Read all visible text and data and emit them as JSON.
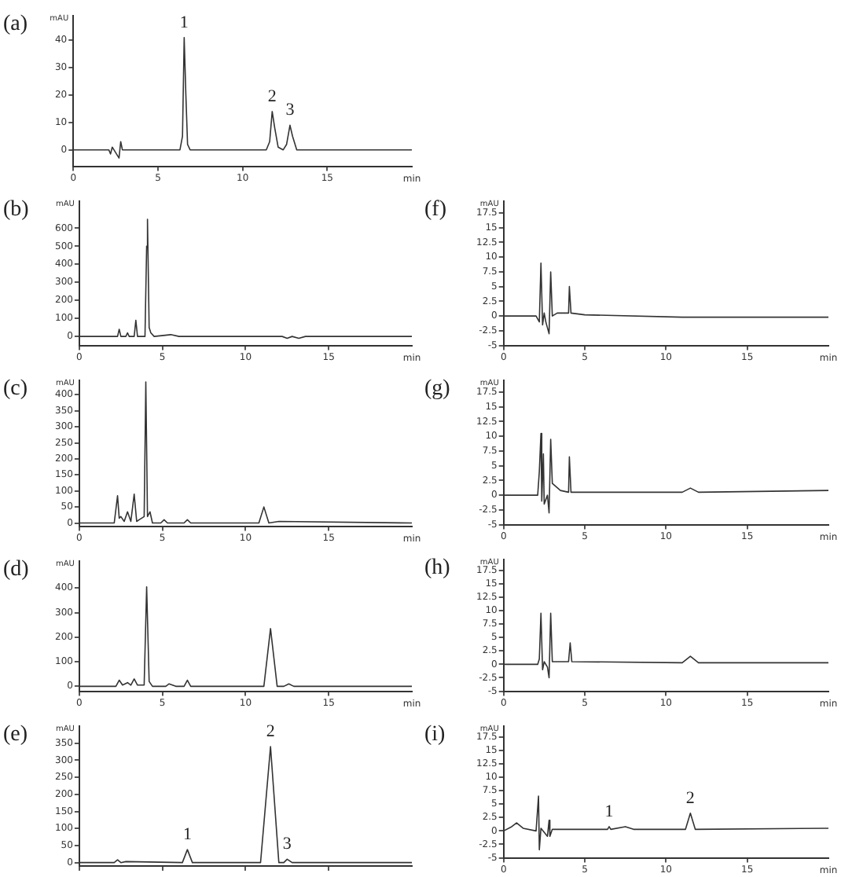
{
  "chart_data": [
    {
      "type": "line",
      "title": "(a)",
      "ylabel": "mAU",
      "xlabel": "min",
      "color": "#333333",
      "xlim": [
        0,
        20
      ],
      "ylim": [
        -6,
        49
      ],
      "xticks": [
        0,
        5,
        10,
        15
      ],
      "yticks": [
        0,
        10,
        20,
        30,
        40
      ],
      "x": [
        0,
        2.1,
        2.2,
        2.3,
        2.4,
        2.7,
        2.8,
        2.9,
        6.3,
        6.45,
        6.55,
        6.65,
        6.75,
        6.9,
        11.4,
        11.6,
        11.75,
        11.9,
        12.1,
        12.4,
        12.6,
        12.8,
        12.95,
        13.2,
        20
      ],
      "values": [
        0,
        0,
        -1.5,
        1,
        0,
        -3,
        3,
        0,
        0,
        5,
        41,
        20,
        2,
        0,
        0,
        3,
        14,
        8,
        1,
        0,
        2,
        9,
        5,
        0,
        0
      ],
      "annotations": [
        {
          "text": "1",
          "x": 6.55,
          "y": 41
        },
        {
          "text": "2",
          "x": 11.75,
          "y": 14
        },
        {
          "text": "3",
          "x": 12.8,
          "y": 9
        }
      ]
    },
    {
      "type": "line",
      "title": "(b)",
      "ylabel": "mAU",
      "xlabel": "min",
      "color": "#333333",
      "xlim": [
        0,
        20
      ],
      "ylim": [
        -50,
        750
      ],
      "xticks": [
        0,
        5,
        10,
        15
      ],
      "yticks": [
        0,
        100,
        200,
        300,
        400,
        500,
        600
      ],
      "x": [
        0,
        2.3,
        2.4,
        2.5,
        2.8,
        2.9,
        3.0,
        3.3,
        3.4,
        3.5,
        3.95,
        4.05,
        4.1,
        4.2,
        4.3,
        4.5,
        5.5,
        6,
        12.2,
        12.5,
        12.8,
        13.2,
        13.6,
        20
      ],
      "values": [
        0,
        0,
        40,
        0,
        0,
        20,
        0,
        0,
        90,
        0,
        0,
        500,
        650,
        50,
        20,
        0,
        10,
        0,
        0,
        -10,
        0,
        -10,
        0,
        0
      ]
    },
    {
      "type": "line",
      "title": "(c)",
      "ylabel": "mAU",
      "xlabel": "min",
      "color": "#333333",
      "xlim": [
        0,
        20
      ],
      "ylim": [
        -10,
        445
      ],
      "xticks": [
        0,
        5,
        10,
        15
      ],
      "yticks": [
        0,
        50,
        100,
        150,
        200,
        250,
        300,
        350,
        400
      ],
      "x": [
        0,
        2.1,
        2.3,
        2.4,
        2.5,
        2.7,
        2.9,
        3.1,
        3.3,
        3.45,
        3.6,
        3.9,
        4.0,
        4.1,
        4.25,
        4.4,
        4.9,
        5.1,
        5.3,
        6.3,
        6.5,
        6.7,
        10.8,
        11.1,
        11.4,
        12,
        20
      ],
      "values": [
        0,
        0,
        85,
        15,
        20,
        5,
        35,
        5,
        90,
        5,
        10,
        20,
        440,
        20,
        35,
        0,
        0,
        10,
        0,
        0,
        10,
        0,
        0,
        50,
        0,
        5,
        0
      ]
    },
    {
      "type": "line",
      "title": "(d)",
      "ylabel": "mAU",
      "xlabel": "min",
      "color": "#333333",
      "xlim": [
        0,
        20
      ],
      "ylim": [
        -20,
        510
      ],
      "xticks": [
        0,
        5,
        10,
        15
      ],
      "yticks": [
        0,
        100,
        200,
        300,
        400
      ],
      "x": [
        0,
        2.2,
        2.4,
        2.6,
        2.9,
        3.1,
        3.3,
        3.5,
        3.9,
        4.05,
        4.2,
        4.4,
        5.2,
        5.4,
        5.8,
        6.3,
        6.5,
        6.7,
        11.1,
        11.5,
        11.9,
        12.3,
        12.6,
        12.9,
        20
      ],
      "values": [
        0,
        0,
        25,
        5,
        15,
        5,
        30,
        5,
        5,
        405,
        20,
        0,
        0,
        10,
        0,
        0,
        25,
        0,
        0,
        235,
        0,
        0,
        10,
        0,
        0
      ]
    },
    {
      "type": "line",
      "title": "(e)",
      "ylabel": "mAU",
      "color": "#333333",
      "xlim": [
        0,
        20
      ],
      "ylim": [
        -10,
        400
      ],
      "tick_labels": "y",
      "xticks": [
        0,
        5,
        10,
        15
      ],
      "yticks": [
        0,
        50,
        100,
        150,
        200,
        250,
        300,
        350
      ],
      "x": [
        0,
        2.1,
        2.3,
        2.5,
        2.8,
        6.2,
        6.5,
        6.8,
        10.9,
        11.5,
        12.0,
        12.3,
        12.5,
        12.8,
        20
      ],
      "values": [
        0,
        0,
        8,
        0,
        3,
        0,
        38,
        0,
        0,
        340,
        0,
        0,
        10,
        0,
        0
      ],
      "annotations": [
        {
          "text": "1",
          "x": 6.5,
          "y": 38
        },
        {
          "text": "2",
          "x": 11.5,
          "y": 340
        },
        {
          "text": "3",
          "x": 12.5,
          "y": 10
        }
      ]
    },
    {
      "type": "line",
      "title": "(f)",
      "ylabel": "mAU",
      "xlabel": "min",
      "color": "#333333",
      "xlim": [
        0,
        20
      ],
      "ylim": [
        -5,
        19.5
      ],
      "xticks": [
        0,
        5,
        10,
        15
      ],
      "yticks": [
        -5,
        -2.5,
        0,
        2.5,
        5,
        7.5,
        10,
        12.5,
        15,
        17.5
      ],
      "x": [
        0,
        2.0,
        2.2,
        2.3,
        2.4,
        2.5,
        2.6,
        2.8,
        2.9,
        3.0,
        3.3,
        4.0,
        4.05,
        4.15,
        5,
        11,
        20
      ],
      "values": [
        0,
        0,
        -1,
        9,
        -1.5,
        0.5,
        -1,
        -3,
        7.5,
        0,
        0.5,
        0.5,
        5,
        0.5,
        0.2,
        -0.2,
        -0.2
      ]
    },
    {
      "type": "line",
      "title": "(g)",
      "ylabel": "mAU",
      "xlabel": "min",
      "color": "#333333",
      "xlim": [
        0,
        20
      ],
      "ylim": [
        -5,
        19.5
      ],
      "xticks": [
        0,
        5,
        10,
        15
      ],
      "yticks": [
        -5,
        -2.5,
        0,
        2.5,
        5,
        7.5,
        10,
        12.5,
        15,
        17.5
      ],
      "x": [
        0,
        2.1,
        2.2,
        2.3,
        2.35,
        2.45,
        2.5,
        2.7,
        2.8,
        2.9,
        3.0,
        3.5,
        4.0,
        4.05,
        4.15,
        11,
        11.5,
        12,
        20
      ],
      "values": [
        0,
        0,
        4,
        10.5,
        -1,
        7,
        -1.5,
        0,
        -3,
        9.5,
        2,
        0.8,
        0.5,
        6.5,
        0.5,
        0.5,
        1.2,
        0.5,
        0.8
      ]
    },
    {
      "type": "line",
      "title": "(h)",
      "ylabel": "mAU",
      "xlabel": "min",
      "color": "#333333",
      "xlim": [
        0,
        20
      ],
      "ylim": [
        -5,
        19.5
      ],
      "xticks": [
        0,
        5,
        10,
        15
      ],
      "yticks": [
        -5,
        -2.5,
        0,
        2.5,
        5,
        7.5,
        10,
        12.5,
        15,
        17.5
      ],
      "x": [
        0,
        2.1,
        2.2,
        2.3,
        2.4,
        2.5,
        2.7,
        2.8,
        2.9,
        3.0,
        4.0,
        4.1,
        4.2,
        11,
        11.5,
        12,
        20
      ],
      "values": [
        0,
        0,
        1,
        9.5,
        -1,
        0.5,
        -0.5,
        -2.5,
        9.5,
        0.5,
        0.5,
        4,
        0.5,
        0.3,
        1.5,
        0.3,
        0.3
      ]
    },
    {
      "type": "line",
      "title": "(i)",
      "ylabel": "mAU",
      "xlabel": "min",
      "color": "#333333",
      "xlim": [
        0,
        20
      ],
      "ylim": [
        -5,
        19.5
      ],
      "xticks": [
        0,
        5,
        10,
        15
      ],
      "yticks": [
        -5,
        -2.5,
        0,
        2.5,
        5,
        7.5,
        10,
        12.5,
        15,
        17.5
      ],
      "x": [
        0,
        0.5,
        0.8,
        1.2,
        2.0,
        2.15,
        2.2,
        2.3,
        2.7,
        2.8,
        2.85,
        3.0,
        4,
        6.4,
        6.5,
        6.6,
        7.5,
        8,
        11.2,
        11.5,
        11.8,
        20
      ],
      "values": [
        0,
        0.8,
        1.5,
        0.5,
        0,
        6.5,
        -3.5,
        0.5,
        -1,
        2,
        -1,
        0.3,
        0.3,
        0.3,
        0.8,
        0.3,
        0.8,
        0.3,
        0.3,
        3.3,
        0.3,
        0.5
      ],
      "annotations": [
        {
          "text": "1",
          "x": 6.5,
          "y": 0.8
        },
        {
          "text": "2",
          "x": 11.5,
          "y": 3.3
        }
      ]
    }
  ]
}
